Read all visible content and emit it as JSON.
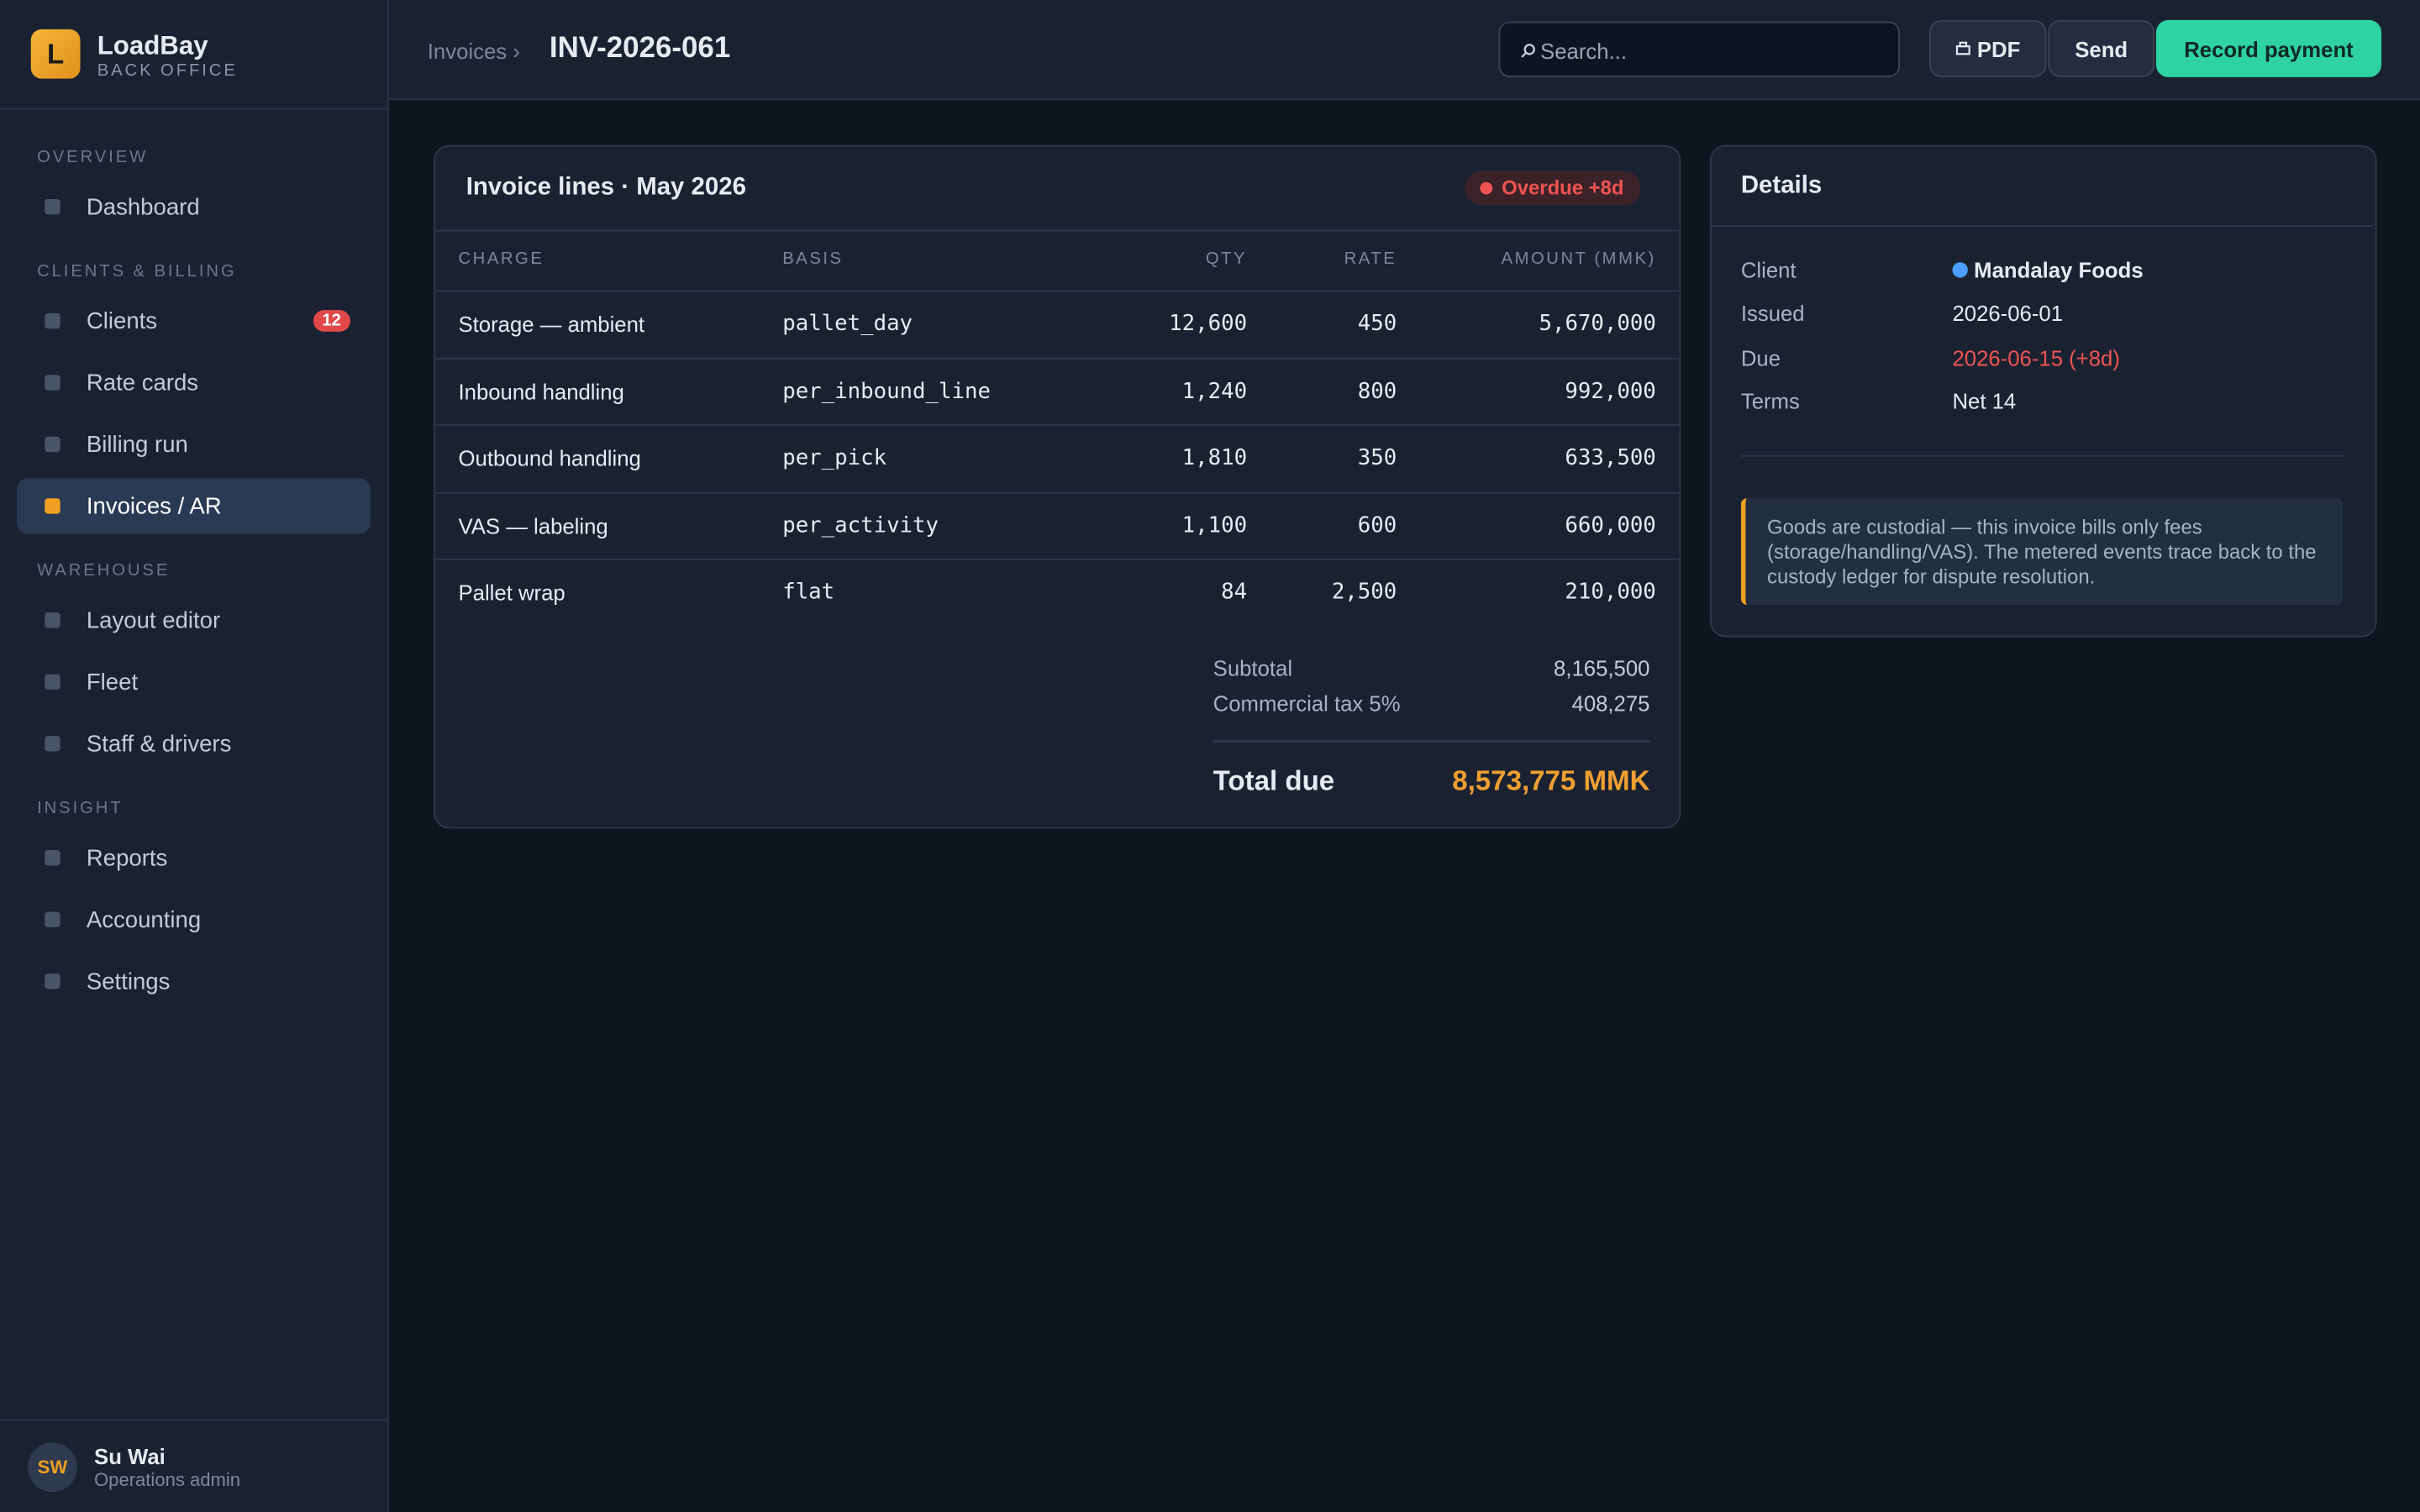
{
  "sidebar": {
    "logo_letter": "L",
    "brand": "LoadBay",
    "subtitle": "BACK OFFICE",
    "sections": [
      {
        "title": "OVERVIEW",
        "items": [
          {
            "label": "Dashboard"
          }
        ]
      },
      {
        "title": "CLIENTS & BILLING",
        "items": [
          {
            "label": "Clients",
            "badge": "12"
          },
          {
            "label": "Rate cards"
          },
          {
            "label": "Billing run"
          },
          {
            "label": "Invoices / AR",
            "active": true
          }
        ]
      },
      {
        "title": "WAREHOUSE",
        "items": [
          {
            "label": "Layout editor"
          },
          {
            "label": "Fleet"
          },
          {
            "label": "Staff & drivers"
          }
        ]
      },
      {
        "title": "INSIGHT",
        "items": [
          {
            "label": "Reports"
          },
          {
            "label": "Accounting"
          },
          {
            "label": "Settings"
          }
        ]
      }
    ],
    "user": {
      "initials": "SW",
      "name": "Su Wai",
      "role": "Operations admin"
    }
  },
  "header": {
    "breadcrumb": "Invoices ›",
    "title": "INV-2026-061",
    "search_placeholder": "Search...",
    "buttons": [
      "PDF",
      "Send",
      "Record payment"
    ]
  },
  "invoice": {
    "title": "Invoice lines · May 2026",
    "status": "Overdue +8d",
    "columns": [
      "CHARGE",
      "BASIS",
      "QTY",
      "RATE",
      "AMOUNT (MMK)"
    ],
    "rows": [
      [
        "Storage — ambient",
        "pallet_day",
        "12,600",
        "450",
        "5,670,000"
      ],
      [
        "Inbound handling",
        "per_inbound_line",
        "1,240",
        "800",
        "992,000"
      ],
      [
        "Outbound handling",
        "per_pick",
        "1,810",
        "350",
        "633,500"
      ],
      [
        "VAS — labeling",
        "per_activity",
        "1,100",
        "600",
        "660,000"
      ],
      [
        "Pallet wrap",
        "flat",
        "84",
        "2,500",
        "210,000"
      ]
    ],
    "totals": [
      {
        "label": "Subtotal",
        "value": "8,165,500"
      },
      {
        "label": "Commercial tax 5%",
        "value": "408,275"
      }
    ],
    "total_due": {
      "label": "Total due",
      "value": "8,573,775 MMK"
    }
  },
  "details": {
    "title": "Details",
    "rows": [
      {
        "label": "Client",
        "value": "Mandalay Foods",
        "dot_color": "#4a9eff"
      },
      {
        "label": "Issued",
        "value": "2026-06-01"
      },
      {
        "label": "Due",
        "value": "2026-06-15 (+8d)",
        "color": "#ef5350"
      },
      {
        "label": "Terms",
        "value": "Net 14"
      }
    ],
    "note": "Goods are custodial — this invoice bills only fees (storage/handling/VAS). The metered events trace back to the custody ledger for dispute resolution."
  }
}
